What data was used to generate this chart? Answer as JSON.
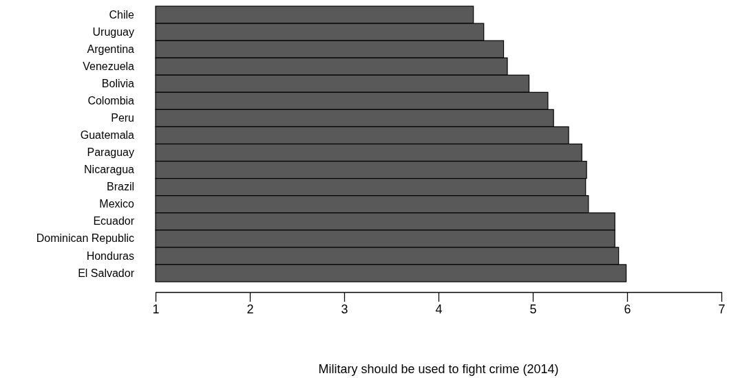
{
  "chart_data": {
    "type": "bar",
    "orientation": "horizontal",
    "xlabel": "Military should be used to fight crime (2014)",
    "categories": [
      "Chile",
      "Uruguay",
      "Argentina",
      "Venezuela",
      "Bolivia",
      "Colombia",
      "Peru",
      "Guatemala",
      "Paraguay",
      "Nicaragua",
      "Brazil",
      "Mexico",
      "Ecuador",
      "Dominican Republic",
      "Honduras",
      "El Salvador"
    ],
    "values": [
      4.37,
      4.48,
      4.69,
      4.73,
      4.96,
      5.16,
      5.22,
      5.38,
      5.52,
      5.57,
      5.56,
      5.59,
      5.87,
      5.87,
      5.91,
      5.99
    ],
    "color": "#595959",
    "xlim": [
      1,
      7
    ],
    "xticks": [
      1,
      2,
      3,
      4,
      5,
      6,
      7
    ]
  }
}
